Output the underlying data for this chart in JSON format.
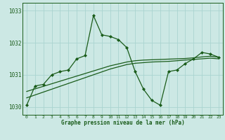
{
  "xlabel": "Graphe pression niveau de la mer (hPa)",
  "background_color": "#cce8e4",
  "grid_color": "#aad4d0",
  "line_color": "#1a5c1a",
  "ylim": [
    1029.75,
    1033.25
  ],
  "xlim": [
    -0.5,
    23.5
  ],
  "yticks": [
    1030,
    1031,
    1032,
    1033
  ],
  "xticks": [
    0,
    1,
    2,
    3,
    4,
    5,
    6,
    7,
    8,
    9,
    10,
    11,
    12,
    13,
    14,
    15,
    16,
    17,
    18,
    19,
    20,
    21,
    22,
    23
  ],
  "hours": [
    0,
    1,
    2,
    3,
    4,
    5,
    6,
    7,
    8,
    9,
    10,
    11,
    12,
    13,
    14,
    15,
    16,
    17,
    18,
    19,
    20,
    21,
    22,
    23
  ],
  "pressure_main": [
    1030.05,
    1030.65,
    1030.7,
    1031.0,
    1031.1,
    1031.15,
    1031.5,
    1031.6,
    1032.85,
    1032.25,
    1032.2,
    1032.1,
    1031.85,
    1031.1,
    1030.55,
    1030.2,
    1030.05,
    1031.1,
    1031.15,
    1031.35,
    1031.5,
    1031.7,
    1031.65,
    1031.55
  ],
  "pressure_line2": [
    1030.48,
    1030.56,
    1030.64,
    1030.72,
    1030.8,
    1030.88,
    1030.96,
    1031.04,
    1031.12,
    1031.2,
    1031.28,
    1031.34,
    1031.4,
    1031.44,
    1031.46,
    1031.47,
    1031.48,
    1031.49,
    1031.5,
    1031.51,
    1031.53,
    1031.56,
    1031.58,
    1031.55
  ],
  "pressure_line3": [
    1030.28,
    1030.37,
    1030.46,
    1030.55,
    1030.64,
    1030.73,
    1030.82,
    1030.91,
    1031.0,
    1031.09,
    1031.18,
    1031.25,
    1031.32,
    1031.36,
    1031.38,
    1031.4,
    1031.41,
    1031.42,
    1031.44,
    1031.46,
    1031.48,
    1031.5,
    1031.52,
    1031.5
  ]
}
